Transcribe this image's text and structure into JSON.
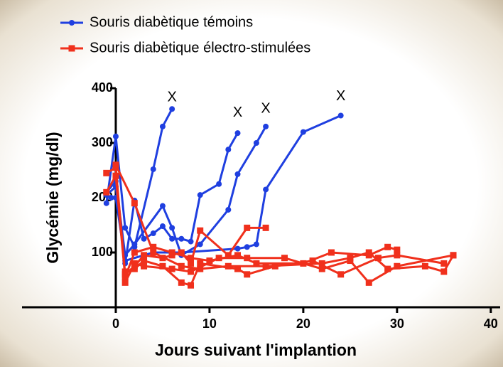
{
  "chart_data": {
    "type": "line",
    "xlabel": "Jours suivant l'implantion",
    "ylabel": "Glycémie (mg/dl)",
    "xlim": [
      -10,
      41
    ],
    "xticks": [
      0,
      10,
      20,
      30,
      40
    ],
    "ylim": [
      0,
      400
    ],
    "yticks": [
      100,
      200,
      300,
      400
    ],
    "series": [
      {
        "name": "Souris diabètique témoins",
        "color": "#1f3fe0",
        "marker": "circle",
        "lines": [
          {
            "x": [
              -1,
              0,
              1,
              2,
              4,
              5,
              6
            ],
            "values": [
              190,
              312,
              145,
              110,
              252,
              330,
              362
            ]
          },
          {
            "x": [
              -1,
              0,
              1,
              2,
              3,
              4,
              5,
              6,
              7,
              8,
              9,
              11,
              12,
              13
            ],
            "values": [
              205,
              220,
              80,
              195,
              125,
              135,
              148,
              125,
              125,
              120,
              205,
              225,
              288,
              318
            ]
          },
          {
            "x": [
              -1,
              0,
              1,
              2,
              5,
              6,
              7,
              9,
              12,
              13,
              15,
              16
            ],
            "values": [
              210,
              230,
              95,
              115,
              185,
              145,
              95,
              115,
              178,
              243,
              300,
              330
            ]
          },
          {
            "x": [
              -0.5,
              0,
              1,
              4,
              7,
              13,
              14,
              15,
              16,
              20,
              24
            ],
            "values": [
              200,
              200,
              85,
              100,
              100,
              107,
              110,
              115,
              215,
              320,
              350
            ]
          }
        ]
      },
      {
        "name": "Souris diabètique électro-stimulées",
        "color": "#f0301c",
        "marker": "square",
        "lines": [
          {
            "x": [
              -1,
              0,
              1,
              2,
              3,
              5,
              6,
              7,
              8,
              9,
              12,
              14,
              16
            ],
            "values": [
              245,
              255,
              60,
              75,
              95,
              90,
              95,
              100,
              80,
              140,
              95,
              145,
              145
            ]
          },
          {
            "x": [
              -1,
              0,
              1,
              2,
              4,
              6,
              8,
              10,
              13,
              15,
              20,
              23,
              27,
              29,
              30
            ],
            "values": [
              210,
              240,
              55,
              100,
              110,
              100,
              90,
              85,
              95,
              80,
              80,
              100,
              95,
              110,
              105
            ]
          },
          {
            "x": [
              0,
              2,
              4,
              7,
              9,
              12,
              16,
              22,
              25,
              27,
              29,
              33,
              35,
              36
            ],
            "values": [
              260,
              190,
              100,
              75,
              70,
              75,
              75,
              80,
              90,
              100,
              70,
              75,
              65,
              95
            ]
          },
          {
            "x": [
              1,
              2,
              3,
              5,
              7,
              8,
              9,
              13,
              14,
              17,
              21,
              24,
              28,
              30,
              35
            ],
            "values": [
              65,
              70,
              85,
              75,
              45,
              40,
              80,
              70,
              60,
              75,
              85,
              60,
              90,
              95,
              80
            ]
          },
          {
            "x": [
              1,
              2,
              3,
              6,
              8,
              11,
              14,
              18,
              22,
              25,
              27,
              30,
              36
            ],
            "values": [
              45,
              80,
              75,
              70,
              65,
              90,
              90,
              90,
              70,
              85,
              45,
              75,
              95
            ]
          }
        ]
      }
    ],
    "annotations": [
      {
        "text": "X",
        "x": 6,
        "y": 383
      },
      {
        "text": "X",
        "x": 13,
        "y": 355
      },
      {
        "text": "X",
        "x": 16,
        "y": 362
      },
      {
        "text": "X",
        "x": 24,
        "y": 385
      }
    ]
  }
}
